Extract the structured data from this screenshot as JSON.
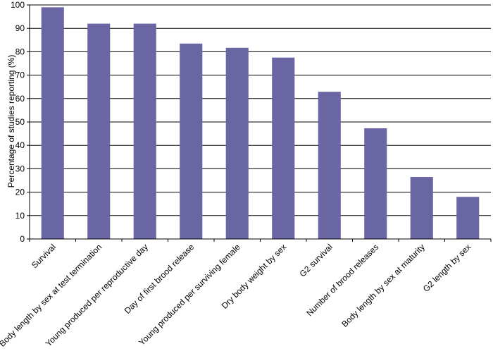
{
  "chart_data": {
    "type": "bar",
    "title": "",
    "xlabel": "",
    "ylabel": "Percentage of studies reporting (%)",
    "ylim": [
      0,
      100
    ],
    "yticks": [
      0,
      10,
      20,
      30,
      40,
      50,
      60,
      70,
      80,
      90,
      100
    ],
    "grid": true,
    "bar_color": "#6a66a3",
    "categories": [
      "Survival",
      "Body length by sex at test termination",
      "Young produced per reproductive day",
      "Day of first brood release",
      "Young produced per surviving female",
      "Dry body weight by sex",
      "G2 survival",
      "Number of brood releases",
      "Body length by sex at maturity",
      "G2 length by sex"
    ],
    "values": [
      99,
      92,
      92,
      83.5,
      81.7,
      77.5,
      62.9,
      47.3,
      26.5,
      18
    ]
  }
}
